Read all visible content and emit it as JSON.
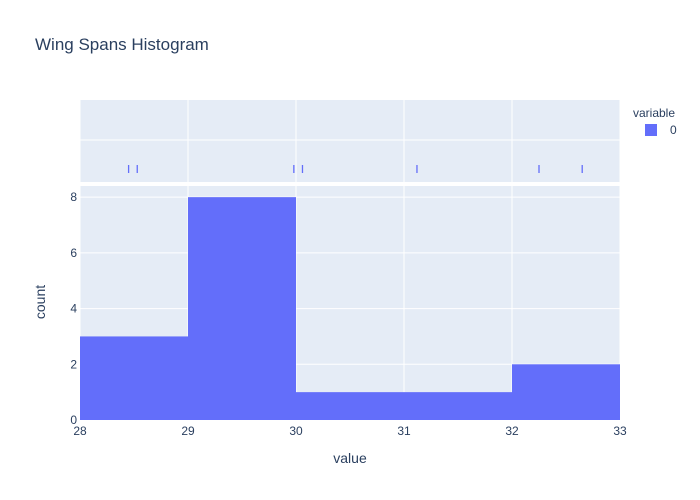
{
  "chart_data": {
    "type": "bar",
    "title": "Wing Spans Histogram",
    "xlabel": "value",
    "ylabel": "count",
    "xlim": [
      28,
      33
    ],
    "ylim": [
      0,
      8.4
    ],
    "x_ticks": [
      28,
      29,
      30,
      31,
      32,
      33
    ],
    "y_ticks": [
      0,
      2,
      4,
      6,
      8
    ],
    "bins": [
      {
        "start": 28,
        "end": 29,
        "count": 3
      },
      {
        "start": 29,
        "end": 30,
        "count": 8
      },
      {
        "start": 30,
        "end": 31,
        "count": 1
      },
      {
        "start": 31,
        "end": 32,
        "count": 1
      },
      {
        "start": 32,
        "end": 33,
        "count": 2
      }
    ],
    "rug_values": [
      28.45,
      28.53,
      29.98,
      30.06,
      31.12,
      32.25,
      32.65
    ],
    "legend": {
      "title": "variable",
      "entries": [
        {
          "name": "0",
          "color": "#636efa"
        }
      ],
      "placement": "top-right"
    },
    "grid": true,
    "colors": {
      "bar": "#636efa",
      "plot_bg": "#e5ecf6",
      "grid": "#ffffff"
    }
  }
}
